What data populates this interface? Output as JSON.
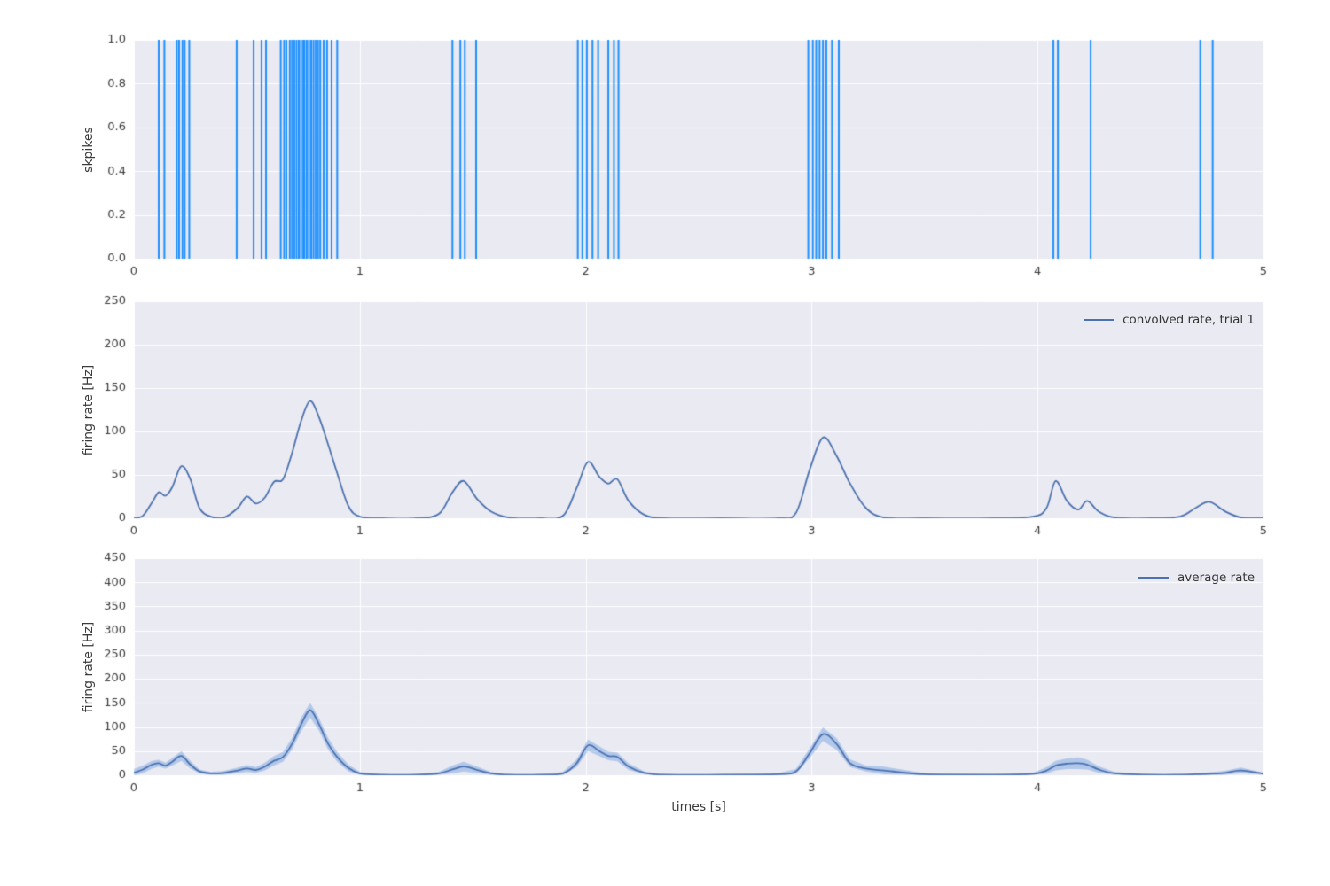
{
  "style": {
    "figure_bg": "#ffffff",
    "axes_bg": "#eaeaf2",
    "grid_color": "#ffffff",
    "tick_color": "#3b3b3b",
    "spike_color": "#1e90ff",
    "line_color": "#4c72b0",
    "band_color": "#6f9fe0",
    "band_alpha": 0.45
  },
  "chart_data": [
    {
      "type": "event-raster",
      "ylabel": "skpikes",
      "xlim": [
        0,
        5
      ],
      "ylim": [
        0,
        1
      ],
      "xticks": [
        0,
        1,
        2,
        3,
        4,
        5
      ],
      "xtick_labels": [
        "0",
        "1",
        "2",
        "3",
        "4",
        "5"
      ],
      "yticks": [
        0,
        0.2,
        0.4,
        0.6,
        0.8,
        1.0
      ],
      "ytick_labels": [
        "0.0",
        "0.2",
        "0.4",
        "0.6",
        "0.8",
        "1.0"
      ],
      "events": [
        0.11,
        0.135,
        0.19,
        0.2,
        0.215,
        0.225,
        0.245,
        0.455,
        0.53,
        0.565,
        0.585,
        0.65,
        0.665,
        0.675,
        0.69,
        0.7,
        0.71,
        0.72,
        0.73,
        0.74,
        0.75,
        0.755,
        0.765,
        0.775,
        0.785,
        0.795,
        0.805,
        0.815,
        0.825,
        0.84,
        0.855,
        0.875,
        0.9,
        1.41,
        1.445,
        1.465,
        1.515,
        1.965,
        1.985,
        2.005,
        2.03,
        2.055,
        2.1,
        2.125,
        2.145,
        2.985,
        3.005,
        3.02,
        3.035,
        3.05,
        3.065,
        3.09,
        3.12,
        4.07,
        4.09,
        4.235,
        4.72,
        4.775
      ]
    },
    {
      "type": "line",
      "ylabel": "firing rate [Hz]",
      "legend": "convolved rate, trial 1",
      "xlim": [
        0,
        5
      ],
      "ylim": [
        0,
        250
      ],
      "xticks": [
        0,
        1,
        2,
        3,
        4,
        5
      ],
      "xtick_labels": [
        "0",
        "1",
        "2",
        "3",
        "4",
        "5"
      ],
      "yticks": [
        0,
        50,
        100,
        150,
        200,
        250
      ],
      "ytick_labels": [
        "0",
        "50",
        "100",
        "150",
        "200",
        "250"
      ],
      "x": [
        0,
        0.04,
        0.08,
        0.11,
        0.14,
        0.17,
        0.21,
        0.25,
        0.29,
        0.34,
        0.4,
        0.46,
        0.5,
        0.54,
        0.58,
        0.62,
        0.66,
        0.7,
        0.74,
        0.78,
        0.82,
        0.86,
        0.9,
        0.95,
        1.0,
        1.1,
        1.25,
        1.35,
        1.41,
        1.46,
        1.52,
        1.58,
        1.66,
        1.8,
        1.9,
        1.96,
        2.01,
        2.06,
        2.1,
        2.14,
        2.19,
        2.26,
        2.35,
        2.6,
        2.85,
        2.93,
        2.99,
        3.05,
        3.11,
        3.17,
        3.24,
        3.32,
        3.5,
        3.8,
        3.98,
        4.04,
        4.08,
        4.13,
        4.18,
        4.22,
        4.27,
        4.34,
        4.5,
        4.63,
        4.7,
        4.76,
        4.83,
        4.9,
        5.0
      ],
      "y": [
        0,
        3,
        18,
        30,
        26,
        36,
        60,
        45,
        12,
        2,
        1,
        12,
        25,
        17,
        24,
        42,
        45,
        75,
        112,
        135,
        116,
        85,
        52,
        14,
        2,
        0,
        0,
        5,
        30,
        43,
        22,
        8,
        1,
        0,
        3,
        35,
        65,
        48,
        40,
        45,
        20,
        4,
        0,
        0,
        0,
        6,
        55,
        93,
        72,
        40,
        12,
        1,
        0,
        0,
        2,
        12,
        43,
        20,
        10,
        20,
        8,
        1,
        0,
        2,
        12,
        19,
        8,
        1,
        0
      ]
    },
    {
      "type": "line-band",
      "ylabel": "firing rate [Hz]",
      "xlabel": "times [s]",
      "legend": "average rate",
      "xlim": [
        0,
        5
      ],
      "ylim": [
        0,
        450
      ],
      "xticks": [
        0,
        1,
        2,
        3,
        4,
        5
      ],
      "xtick_labels": [
        "0",
        "1",
        "2",
        "3",
        "4",
        "5"
      ],
      "yticks": [
        0,
        50,
        100,
        150,
        200,
        250,
        300,
        350,
        400,
        450
      ],
      "ytick_labels": [
        "0",
        "50",
        "100",
        "150",
        "200",
        "250",
        "300",
        "350",
        "400",
        "450"
      ],
      "x": [
        0,
        0.04,
        0.08,
        0.11,
        0.14,
        0.17,
        0.21,
        0.25,
        0.29,
        0.34,
        0.4,
        0.46,
        0.5,
        0.54,
        0.58,
        0.62,
        0.66,
        0.7,
        0.74,
        0.78,
        0.82,
        0.86,
        0.9,
        0.95,
        1.0,
        1.1,
        1.25,
        1.35,
        1.41,
        1.46,
        1.52,
        1.58,
        1.66,
        1.8,
        1.9,
        1.96,
        2.01,
        2.06,
        2.1,
        2.14,
        2.19,
        2.26,
        2.35,
        2.6,
        2.85,
        2.93,
        2.99,
        3.05,
        3.11,
        3.17,
        3.24,
        3.32,
        3.5,
        3.8,
        3.98,
        4.04,
        4.08,
        4.13,
        4.18,
        4.22,
        4.27,
        4.34,
        4.5,
        4.63,
        4.7,
        4.76,
        4.83,
        4.9,
        5.0
      ],
      "mean": [
        5,
        12,
        22,
        25,
        20,
        28,
        40,
        22,
        8,
        4,
        5,
        10,
        14,
        11,
        18,
        30,
        38,
        65,
        105,
        135,
        105,
        65,
        38,
        15,
        4,
        1,
        1,
        4,
        12,
        18,
        11,
        4,
        1,
        1,
        4,
        25,
        62,
        50,
        40,
        38,
        18,
        5,
        1,
        1,
        2,
        8,
        45,
        85,
        65,
        25,
        14,
        10,
        2,
        1,
        3,
        10,
        20,
        24,
        25,
        22,
        12,
        4,
        1,
        1,
        2,
        3,
        5,
        10,
        3
      ],
      "err": [
        8,
        8,
        8,
        7,
        6,
        8,
        10,
        8,
        4,
        3,
        4,
        6,
        7,
        6,
        8,
        10,
        10,
        12,
        14,
        15,
        13,
        12,
        10,
        7,
        3,
        1,
        1,
        3,
        8,
        10,
        7,
        3,
        1,
        1,
        3,
        8,
        12,
        10,
        9,
        9,
        7,
        3,
        1,
        1,
        2,
        5,
        10,
        14,
        12,
        8,
        6,
        8,
        2,
        1,
        2,
        7,
        10,
        11,
        12,
        10,
        7,
        3,
        1,
        1,
        2,
        3,
        4,
        6,
        2
      ]
    }
  ]
}
